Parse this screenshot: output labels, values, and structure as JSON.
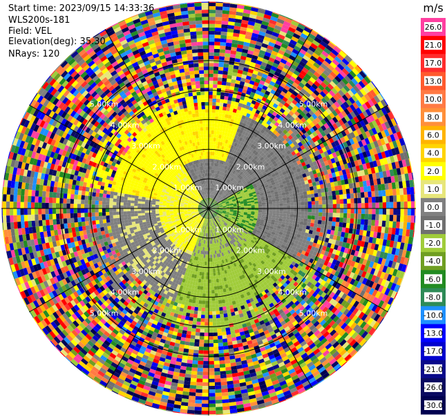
{
  "header": {
    "start_time": "Start time: 2023/09/15 14:33:36",
    "instrument": "WLS200s-181",
    "field": "Field: VEL",
    "elevation": "Elevation(deg): 35.30",
    "nrays": "NRays: 120"
  },
  "chart_data": {
    "type": "ppi",
    "field": "VEL",
    "nrays": 120,
    "max_range_km": 7.0,
    "range_rings_km": [
      1,
      2,
      3,
      4,
      5
    ],
    "range_ring_label_unit": "km",
    "radials_deg": [
      0,
      30,
      60,
      90,
      120,
      150,
      180,
      210,
      240,
      270,
      300,
      330
    ],
    "colorbar": {
      "unit": "m/s",
      "bins": [
        {
          "label": "26.0",
          "color": "#ff3fa0"
        },
        {
          "label": "21.0",
          "color": "#ff0000"
        },
        {
          "label": "17.0",
          "color": "#ff2d2d"
        },
        {
          "label": "13.0",
          "color": "#ff5a2e"
        },
        {
          "label": "10.0",
          "color": "#ff7a44"
        },
        {
          "label": "8.0",
          "color": "#ff8f3a"
        },
        {
          "label": "6.0",
          "color": "#ffb400"
        },
        {
          "label": "4.0",
          "color": "#ffd400"
        },
        {
          "label": "2.0",
          "color": "#ffff00"
        },
        {
          "label": "1.0",
          "color": "#e7e67a"
        },
        {
          "label": "0.0",
          "color": "#808080"
        },
        {
          "label": "-1.0",
          "color": "#707070"
        },
        {
          "label": "-2.0",
          "color": "#a0cc3a"
        },
        {
          "label": "-4.0",
          "color": "#6f9e22"
        },
        {
          "label": "-6.0",
          "color": "#228b22"
        },
        {
          "label": "-8.0",
          "color": "#2e8b57"
        },
        {
          "label": "-10.0",
          "color": "#1e90ff"
        },
        {
          "label": "-13.0",
          "color": "#0000ff"
        },
        {
          "label": "-17.0",
          "color": "#0000cd"
        },
        {
          "label": "-21.0",
          "color": "#0a0a8a"
        },
        {
          "label": "-26.0",
          "color": "#0a0a60"
        },
        {
          "label": "-30.0",
          "color": "#000050"
        }
      ]
    }
  }
}
